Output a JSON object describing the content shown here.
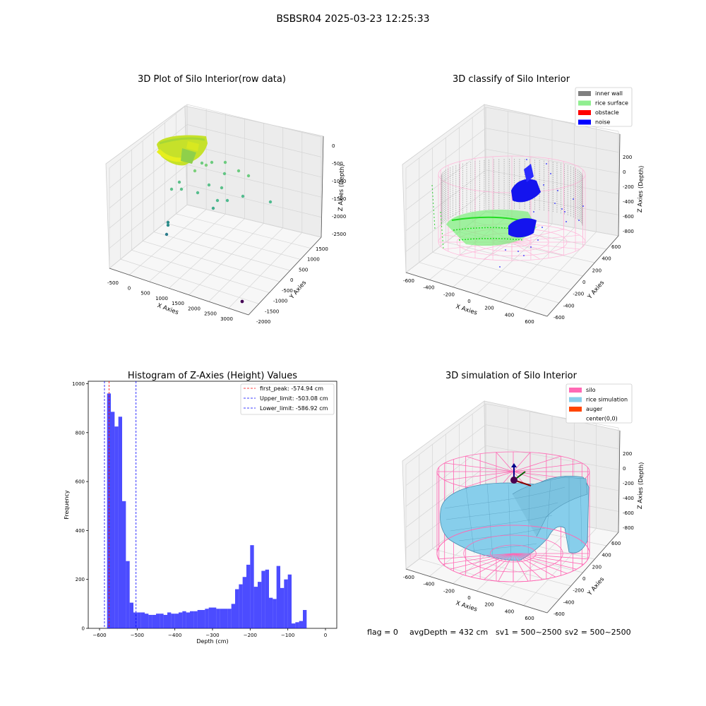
{
  "suptitle": "BSBSR04 2025-03-23 12:25:33",
  "status": {
    "flag": "flag = 0",
    "avg_depth": "avgDepth = 432 cm",
    "sv1": "sv1 = 500~2500",
    "sv2": "sv2 = 500~2500"
  },
  "chart_data": [
    {
      "type": "scatter",
      "title": "3D Plot of Silo Interior(row data)",
      "xlabel": "X Axies",
      "ylabel": "Y Axies",
      "zlabel": "Z Axies (Depth)",
      "x_ticks": [
        -500,
        0,
        500,
        1000,
        1500,
        2000,
        2500,
        3000
      ],
      "y_ticks": [
        -2000,
        -1500,
        -1000,
        -500,
        0,
        500,
        1000,
        1500
      ],
      "z_ticks": [
        0,
        -500,
        -1000,
        -1500,
        -2000,
        -2500
      ],
      "grid": true,
      "colormap": "viridis",
      "outlier_points": [
        {
          "x": 1300,
          "y": 0,
          "z": -400
        },
        {
          "x": 1100,
          "y": -200,
          "z": -700
        },
        {
          "x": 1500,
          "y": 200,
          "z": -900
        },
        {
          "x": 2100,
          "y": -300,
          "z": -1500
        },
        {
          "x": 3100,
          "y": -1800,
          "z": -2600
        }
      ]
    },
    {
      "type": "scatter",
      "title": "3D classify of Silo Interior",
      "xlabel": "X Axies",
      "ylabel": "Y Axies",
      "zlabel": "Z Axies (Depth)",
      "x_ticks": [
        -600,
        -400,
        -200,
        0,
        200,
        400,
        600
      ],
      "y_ticks": [
        -600,
        -400,
        -200,
        0,
        200,
        400,
        600
      ],
      "z_ticks": [
        200,
        0,
        -200,
        -400,
        -600,
        -800
      ],
      "grid": true,
      "legend_position": "top-right",
      "legend": [
        {
          "label": "inner wall",
          "color": "#808080"
        },
        {
          "label": "rice surface",
          "color": "#90ee90"
        },
        {
          "label": "obstacle",
          "color": "#ff0000"
        },
        {
          "label": "noise",
          "color": "#0000ff"
        }
      ]
    },
    {
      "type": "bar",
      "title": "Histogram of Z-Axies (Height) Values",
      "xlabel": "Depth (cm)",
      "ylabel": "Frequency",
      "xlim": [
        -630,
        30
      ],
      "ylim": [
        0,
        1010
      ],
      "x_ticks": [
        -600,
        -500,
        -400,
        -300,
        -200,
        -100,
        0
      ],
      "y_ticks": [
        0,
        200,
        400,
        600,
        800,
        1000
      ],
      "bar_color": "#0000ff",
      "bin_width": 10,
      "bin_starts": [
        -580,
        -570,
        -560,
        -550,
        -540,
        -530,
        -520,
        -510,
        -500,
        -490,
        -480,
        -470,
        -460,
        -450,
        -440,
        -430,
        -420,
        -410,
        -400,
        -390,
        -380,
        -370,
        -360,
        -350,
        -340,
        -330,
        -320,
        -310,
        -300,
        -290,
        -280,
        -270,
        -260,
        -250,
        -240,
        -230,
        -220,
        -210,
        -200,
        -190,
        -180,
        -170,
        -160,
        -150,
        -140,
        -130,
        -120,
        -110,
        -100,
        -90,
        -80,
        -70,
        -60,
        -50,
        -40,
        -30,
        -20,
        -10,
        0
      ],
      "values": [
        960,
        885,
        825,
        865,
        520,
        275,
        105,
        65,
        65,
        65,
        60,
        55,
        55,
        60,
        60,
        55,
        65,
        60,
        60,
        65,
        70,
        65,
        70,
        70,
        75,
        75,
        80,
        85,
        85,
        80,
        80,
        80,
        80,
        100,
        160,
        180,
        210,
        260,
        340,
        170,
        190,
        235,
        240,
        125,
        120,
        255,
        165,
        200,
        220,
        20,
        25,
        30,
        75,
        0,
        0,
        0,
        0,
        0,
        0
      ],
      "legend_position": "top-right",
      "lines": [
        {
          "label": "first_peak: -574.94 cm",
          "x": -574.94,
          "color": "#ff0000"
        },
        {
          "label": "Upper_limit: -503.08 cm",
          "x": -503.08,
          "color": "#0000ff"
        },
        {
          "label": "Lower_limit: -586.92 cm",
          "x": -586.92,
          "color": "#0000ff"
        }
      ]
    },
    {
      "type": "area",
      "title": "3D simulation of Silo Interior",
      "xlabel": "X Axies",
      "ylabel": "Y Axies",
      "zlabel": "Z Axies (Depth)",
      "x_ticks": [
        -600,
        -400,
        -200,
        0,
        200,
        400,
        600
      ],
      "y_ticks": [
        -600,
        -400,
        -200,
        0,
        200,
        400,
        600
      ],
      "z_ticks": [
        200,
        0,
        -200,
        -400,
        -600,
        -800
      ],
      "grid": true,
      "legend_position": "top-right",
      "legend": [
        {
          "label": "silo",
          "color": "#ff69b4"
        },
        {
          "label": "rice simulation",
          "color": "#87ceeb"
        },
        {
          "label": "auger",
          "color": "#ff4500"
        },
        {
          "label": "center(0,0)",
          "color": "#ffffff"
        }
      ]
    }
  ]
}
